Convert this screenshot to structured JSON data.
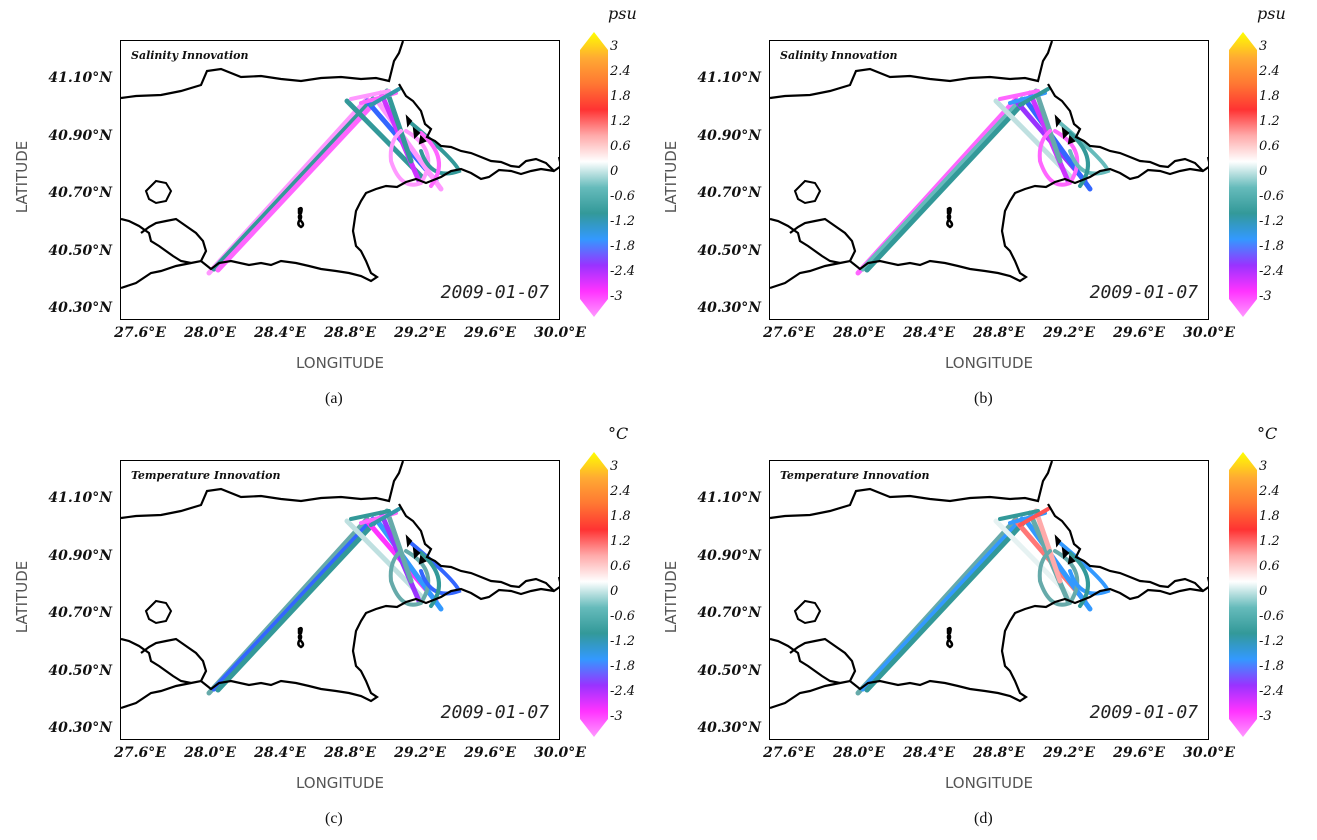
{
  "panels": [
    {
      "id": "a",
      "title": "Salinity Innovation",
      "unit": "psu",
      "date": "2009-01-07",
      "caption": "(a)",
      "variable": "salinity",
      "estimated_value_range": [
        -3,
        -0.8
      ]
    },
    {
      "id": "b",
      "title": "Salinity Innovation",
      "unit": "psu",
      "date": "2009-01-07",
      "caption": "(b)",
      "variable": "salinity",
      "estimated_value_range": [
        -3,
        0
      ]
    },
    {
      "id": "c",
      "title": "Temperature Innovation",
      "unit": "°C",
      "date": "2009-01-07",
      "caption": "(c)",
      "variable": "temperature",
      "estimated_value_range": [
        -3,
        0.4
      ]
    },
    {
      "id": "d",
      "title": "Temperature Innovation",
      "unit": "°C",
      "date": "2009-01-07",
      "caption": "(d)",
      "variable": "temperature",
      "estimated_value_range": [
        -2,
        1
      ]
    }
  ],
  "axes": {
    "xlabel": "LONGITUDE",
    "ylabel": "LATITUDE",
    "lat_ticks": [
      "41.10°N",
      "40.90°N",
      "40.70°N",
      "40.50°N",
      "40.30°N"
    ],
    "lat_values": [
      41.1,
      40.9,
      40.7,
      40.5,
      40.3
    ],
    "lon_ticks": [
      "27.6°E",
      "28.0°E",
      "28.4°E",
      "28.8°E",
      "29.2°E",
      "29.6°E",
      "30.0°E"
    ],
    "lon_values": [
      27.6,
      28.0,
      28.4,
      28.8,
      29.2,
      29.6,
      30.0
    ],
    "lon_range": [
      27.6,
      30.0
    ],
    "lat_range": [
      40.25,
      41.2
    ]
  },
  "colorbar": {
    "ticks": [
      "3",
      "2.4",
      "1.8",
      "1.2",
      "0.6",
      "0",
      "-0.6",
      "-1.2",
      "-1.8",
      "-2.4",
      "-3"
    ],
    "range": [
      -3,
      3
    ],
    "colors": [
      "#ff99ff",
      "#ff33ff",
      "#9933ff",
      "#3399ff",
      "#339999",
      "#66bbbb",
      "#ffffff",
      "#ffaaaa",
      "#ff3333",
      "#ff7733",
      "#ffaa33",
      "#ffff00"
    ]
  }
}
